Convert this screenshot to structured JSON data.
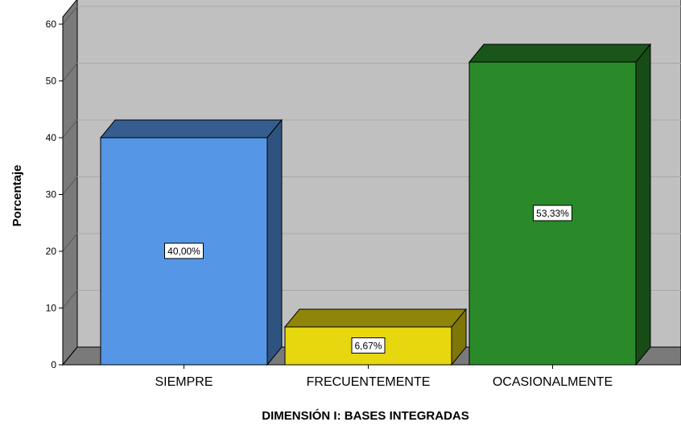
{
  "chart_data": {
    "type": "bar",
    "categories": [
      "SIEMPRE",
      "FRECUENTEMENTE",
      "OCASIONALMENTE"
    ],
    "values": [
      40.0,
      6.67,
      53.33
    ],
    "data_labels": [
      "40,00%",
      "6,67%",
      "53,33%"
    ],
    "colors": [
      "#5596e6",
      "#e6d70f",
      "#2a8a2a"
    ],
    "xlabel": "DIMENSIÓN I: BASES INTEGRADAS",
    "ylabel": "Porcentaje",
    "ylim": [
      0,
      60
    ],
    "yticks": [
      "0",
      "10",
      "20",
      "30",
      "40",
      "50",
      "60"
    ],
    "grid": true,
    "style": "3d"
  }
}
